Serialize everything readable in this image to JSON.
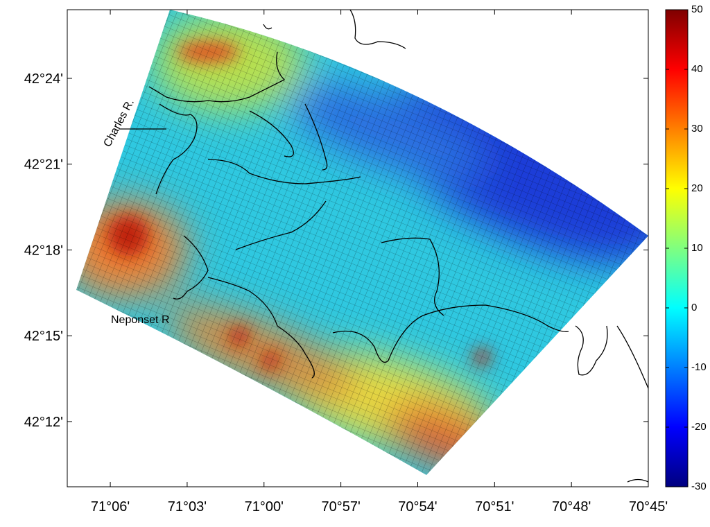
{
  "map": {
    "xlim": [
      -71.128,
      -70.75
    ],
    "ylim": [
      42.162,
      42.44
    ],
    "xticks": [
      {
        "value": -71.1,
        "label": "71°06'"
      },
      {
        "value": -71.05,
        "label": "71°03'"
      },
      {
        "value": -71.0,
        "label": "71°00'"
      },
      {
        "value": -70.95,
        "label": "70°57'"
      },
      {
        "value": -70.9,
        "label": "70°54'"
      },
      {
        "value": -70.85,
        "label": "70°51'"
      },
      {
        "value": -70.8,
        "label": "70°48'"
      },
      {
        "value": -70.75,
        "label": "70°45'"
      }
    ],
    "yticks": [
      {
        "value": 42.2,
        "label": "42°12'"
      },
      {
        "value": 42.25,
        "label": "42°15'"
      },
      {
        "value": 42.3,
        "label": "42°18'"
      },
      {
        "value": 42.35,
        "label": "42°21'"
      },
      {
        "value": 42.4,
        "label": "42°24'"
      }
    ],
    "annotations": [
      "Charles R.",
      "Neponset R"
    ]
  },
  "colorbar": {
    "clim": [
      -30,
      50
    ],
    "ticks": [
      -30,
      -20,
      -10,
      0,
      10,
      20,
      30,
      40,
      50
    ]
  }
}
